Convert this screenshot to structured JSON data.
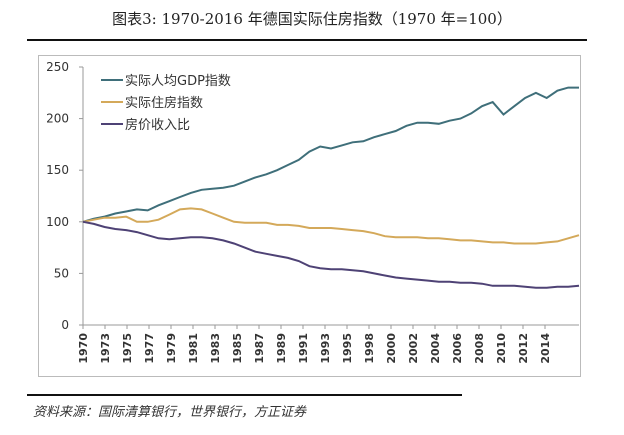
{
  "chart_data": {
    "type": "line",
    "title": "图表3:  1970-2016 年德国实际住房指数（1970 年=100）",
    "xlabel": "",
    "ylabel": "",
    "ylim": [
      0,
      250
    ],
    "yticks": [
      0,
      50,
      100,
      150,
      200,
      250
    ],
    "xtick_labels": [
      "1970",
      "1973",
      "1975",
      "1977",
      "1979",
      "1981",
      "1983",
      "1985",
      "1987",
      "1989",
      "1991",
      "1993",
      "1995",
      "1998",
      "2000",
      "2002",
      "2004",
      "2006",
      "2008",
      "2010",
      "2012",
      "2014"
    ],
    "x": [
      1970,
      1971,
      1972,
      1973,
      1974,
      1975,
      1976,
      1977,
      1978,
      1979,
      1980,
      1981,
      1982,
      1983,
      1984,
      1985,
      1986,
      1987,
      1988,
      1989,
      1990,
      1991,
      1992,
      1993,
      1994,
      1995,
      1996,
      1997,
      1998,
      1999,
      2000,
      2001,
      2002,
      2003,
      2004,
      2005,
      2006,
      2007,
      2008,
      2009,
      2010,
      2011,
      2012,
      2013,
      2014,
      2015,
      2016
    ],
    "series": [
      {
        "name": "实际人均GDP指数",
        "color": "#3f6f7a",
        "values": [
          100,
          103,
          105,
          108,
          110,
          112,
          111,
          116,
          120,
          124,
          128,
          131,
          132,
          133,
          135,
          139,
          143,
          146,
          150,
          155,
          160,
          168,
          173,
          171,
          174,
          177,
          178,
          182,
          185,
          188,
          193,
          196,
          196,
          195,
          198,
          200,
          205,
          212,
          216,
          204,
          212,
          220,
          225,
          220,
          227,
          230,
          230
        ]
      },
      {
        "name": "实际住房指数",
        "color": "#d4a95a",
        "values": [
          100,
          102,
          104,
          104,
          105,
          100,
          100,
          102,
          107,
          112,
          113,
          112,
          108,
          104,
          100,
          99,
          99,
          99,
          97,
          97,
          96,
          94,
          94,
          94,
          93,
          92,
          91,
          89,
          86,
          85,
          85,
          85,
          84,
          84,
          83,
          82,
          82,
          81,
          80,
          80,
          79,
          79,
          79,
          80,
          81,
          84,
          87
        ]
      },
      {
        "name": "房价收入比",
        "color": "#4e4275",
        "values": [
          100,
          98,
          95,
          93,
          92,
          90,
          87,
          84,
          83,
          84,
          85,
          85,
          84,
          82,
          79,
          75,
          71,
          69,
          67,
          65,
          62,
          57,
          55,
          54,
          54,
          53,
          52,
          50,
          48,
          46,
          45,
          44,
          43,
          42,
          42,
          41,
          41,
          40,
          38,
          38,
          38,
          37,
          36,
          36,
          37,
          37,
          38
        ]
      }
    ],
    "legend": "top-left",
    "grid": false
  },
  "source": "资料来源：国际清算银行，世界银行，方正证券"
}
